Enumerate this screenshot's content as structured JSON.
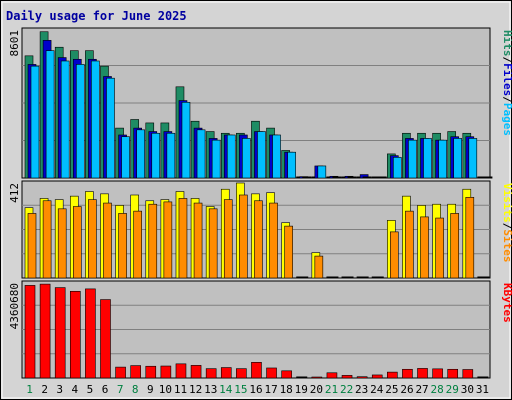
{
  "chart_data": {
    "type": "bar",
    "title": "Daily usage for June 2025",
    "days": [
      "1",
      "2",
      "3",
      "4",
      "5",
      "6",
      "7",
      "8",
      "9",
      "10",
      "11",
      "12",
      "13",
      "14",
      "15",
      "16",
      "17",
      "18",
      "19",
      "20",
      "21",
      "22",
      "23",
      "24",
      "25",
      "26",
      "27",
      "28",
      "29",
      "30",
      "31"
    ],
    "weekend_days": [
      "1",
      "7",
      "8",
      "14",
      "15",
      "21",
      "22",
      "28",
      "29"
    ],
    "panels": [
      {
        "id": "top",
        "max_label": "8601",
        "max_value": 8601,
        "legend": [
          "Pages",
          "Files",
          "Hits"
        ],
        "series": [
          {
            "name": "Hits",
            "color": "#1e8c64",
            "values": [
              7100,
              8500,
              7600,
              7400,
              7400,
              6500,
              2900,
              3400,
              3200,
              3200,
              5300,
              3300,
              2700,
              2600,
              2600,
              3300,
              2900,
              1600,
              0,
              0,
              0,
              0,
              0,
              0,
              1400,
              2600,
              2600,
              2600,
              2700,
              2600,
              0
            ]
          },
          {
            "name": "Files",
            "color": "#0000cc",
            "values": [
              6600,
              8000,
              7000,
              6900,
              6900,
              5900,
              2500,
              2900,
              2700,
              2700,
              4500,
              2900,
              2300,
              2500,
              2500,
              2700,
              2500,
              1500,
              80,
              700,
              100,
              100,
              200,
              0,
              1300,
              2300,
              2300,
              2200,
              2400,
              2400,
              0
            ]
          },
          {
            "name": "Pages",
            "color": "#00bfff",
            "values": [
              6500,
              7400,
              6800,
              6600,
              6800,
              5800,
              2400,
              2800,
              2600,
              2600,
              4400,
              2800,
              2200,
              2500,
              2300,
              2700,
              2500,
              1500,
              0,
              700,
              0,
              0,
              0,
              0,
              1200,
              2200,
              2300,
              2200,
              2300,
              2300,
              0
            ]
          }
        ]
      },
      {
        "id": "middle",
        "max_label": "412",
        "max_value": 412,
        "legend": [
          "Sites",
          "Visits"
        ],
        "series": [
          {
            "name": "Visits",
            "color": "#ffff00",
            "values": [
              305,
              345,
              340,
              355,
              375,
              365,
              315,
              360,
              335,
              340,
              375,
              345,
              310,
              385,
              412,
              365,
              370,
              240,
              0,
              110,
              0,
              0,
              0,
              0,
              250,
              355,
              315,
              320,
              320,
              385,
              0
            ]
          },
          {
            "name": "Sites",
            "color": "#ff8c00",
            "values": [
              280,
              335,
              300,
              310,
              340,
              325,
              280,
              290,
              320,
              330,
              345,
              325,
              300,
              340,
              360,
              335,
              325,
              225,
              0,
              95,
              0,
              0,
              0,
              0,
              200,
              290,
              265,
              260,
              280,
              350,
              0
            ]
          }
        ]
      },
      {
        "id": "bottom",
        "max_label": "4360680",
        "max_value": 4360680,
        "legend": [
          "KBytes"
        ],
        "series": [
          {
            "name": "KBytes",
            "color": "#ff0000",
            "values": [
              4250000,
              4310000,
              4150000,
              3980000,
              4090000,
              3600000,
              500000,
              570000,
              540000,
              550000,
              650000,
              580000,
              430000,
              480000,
              430000,
              720000,
              460000,
              330000,
              0,
              40000,
              240000,
              120000,
              60000,
              140000,
              270000,
              400000,
              440000,
              420000,
              400000,
              390000,
              0
            ]
          }
        ]
      }
    ]
  }
}
